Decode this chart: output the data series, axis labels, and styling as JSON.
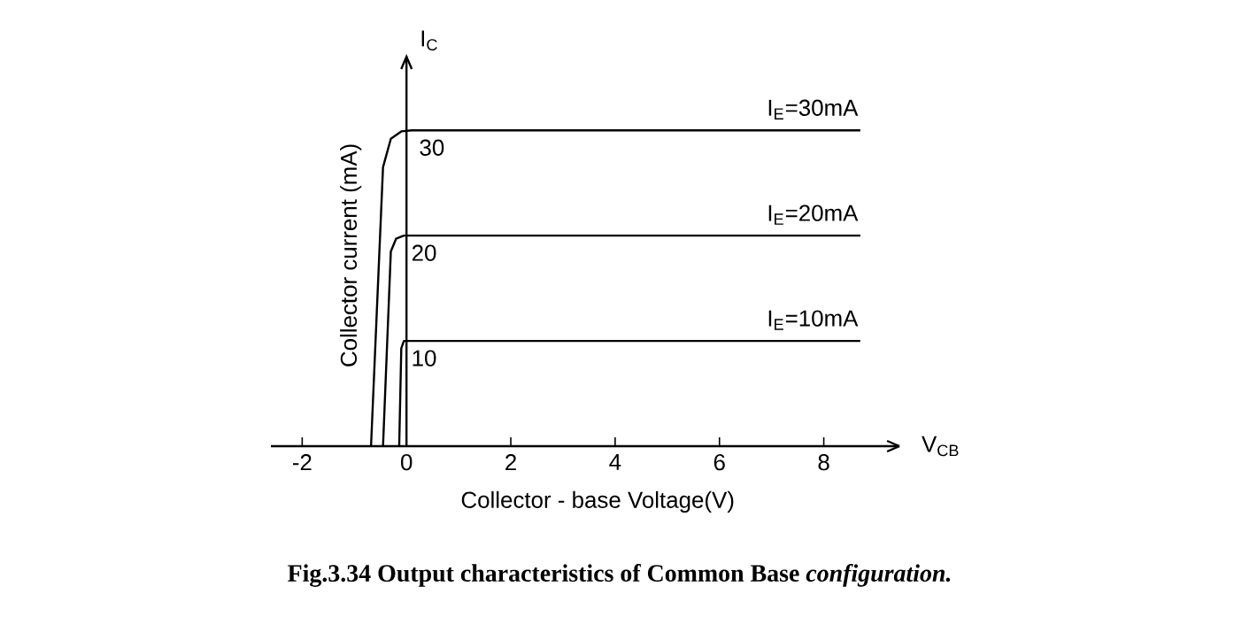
{
  "chart_data": {
    "type": "line",
    "title": "Fig.3.34 Output characteristics of Common Base *configuration.*",
    "xlabel": "Collector - base Voltage(V)",
    "ylabel": "Collector current (mA)",
    "annotations": [
      "I$_{C}$",
      "V$_{CB}$"
    ],
    "series": [
      {
        "name": "I$_{E}$=30mA",
        "color": "#000000",
        "x": [
          -0.68,
          -0.45,
          -0.3,
          -0.1,
          0.1,
          8.7
        ],
        "values": [
          0,
          26.5,
          29.2,
          29.9,
          30,
          30
        ],
        "value_labels": [
          null,
          null,
          null,
          null,
          "30",
          null
        ]
      },
      {
        "name": "I$_{E}$=20mA",
        "color": "#000000",
        "x": [
          -0.45,
          -0.3,
          -0.2,
          -0.05,
          8.7
        ],
        "values": [
          0,
          18.5,
          19.7,
          20,
          20
        ],
        "value_labels": [
          null,
          null,
          null,
          "20",
          null
        ]
      },
      {
        "name": "I$_{E}$=10mA",
        "color": "#000000",
        "x": [
          -0.14,
          -0.1,
          -0.05,
          8.7
        ],
        "values": [
          0,
          9.3,
          10,
          10
        ],
        "value_labels": [
          null,
          null,
          "10",
          null
        ]
      }
    ],
    "xlim": [
      -2.6,
      9.45
    ],
    "ylim": [
      0,
      37
    ],
    "xticks": [
      -2,
      0,
      2,
      4,
      6,
      8
    ],
    "tick_labels": "x",
    "marker": "none",
    "legend": false
  }
}
